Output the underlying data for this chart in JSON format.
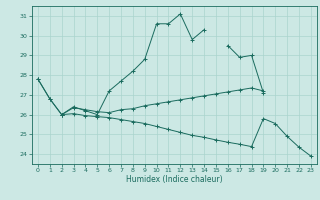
{
  "title": "",
  "xlabel": "Humidex (Indice chaleur)",
  "bg_color": "#cce8e4",
  "grid_color": "#aad4ce",
  "line_color": "#1a6b5e",
  "xlim": [
    -0.5,
    23.5
  ],
  "ylim": [
    23.5,
    31.5
  ],
  "yticks": [
    24,
    25,
    26,
    27,
    28,
    29,
    30,
    31
  ],
  "xticks": [
    0,
    1,
    2,
    3,
    4,
    5,
    6,
    7,
    8,
    9,
    10,
    11,
    12,
    13,
    14,
    15,
    16,
    17,
    18,
    19,
    20,
    21,
    22,
    23
  ],
  "line1_y": [
    27.8,
    26.8,
    26.0,
    26.4,
    26.2,
    26.0,
    27.2,
    27.7,
    28.2,
    28.8,
    30.6,
    30.6,
    31.1,
    29.8,
    30.3,
    null,
    29.5,
    28.9,
    29.0,
    27.1,
    null,
    null,
    null,
    null
  ],
  "line2_y": [
    null,
    null,
    26.0,
    26.35,
    26.25,
    26.15,
    26.1,
    26.25,
    26.3,
    26.45,
    26.55,
    26.65,
    26.75,
    26.85,
    26.95,
    27.05,
    27.15,
    27.25,
    27.35,
    27.2,
    null,
    null,
    null,
    null
  ],
  "line3_y": [
    27.8,
    26.8,
    26.0,
    26.05,
    25.95,
    25.9,
    25.85,
    25.75,
    25.65,
    25.55,
    25.4,
    25.25,
    25.1,
    24.95,
    24.85,
    24.72,
    24.6,
    24.5,
    24.38,
    25.8,
    25.55,
    24.9,
    24.35,
    23.9
  ]
}
